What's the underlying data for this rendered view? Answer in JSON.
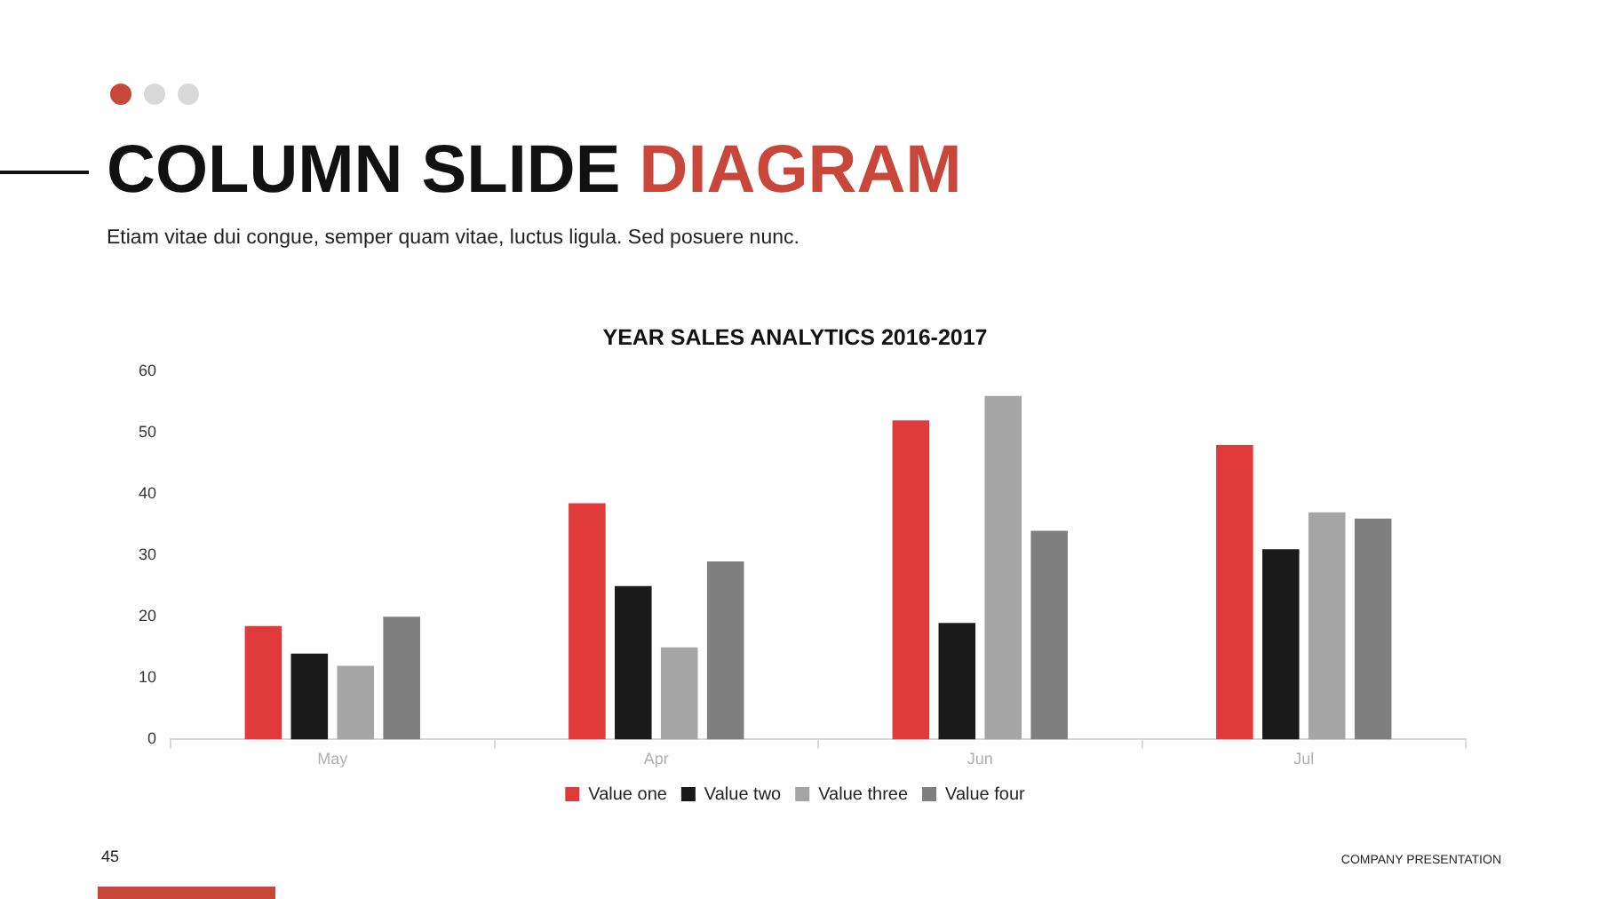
{
  "chart_data": {
    "type": "bar",
    "title": "COLUMN SLIDE DIAGRAM",
    "subtitle": "Etiam vitae dui congue, semper quam vitae, luctus ligula. Sed posuere nunc.",
    "annotations": [
      "YEAR SALES ANALYTICS 2016-2017",
      "45",
      "COMPANY PRESENTATION"
    ],
    "categories": [
      "May",
      "Apr",
      "Jun",
      "Jul"
    ],
    "series": [
      {
        "name": "Value one",
        "color": "#e03a3a",
        "values": [
          18.5,
          38.5,
          52,
          48
        ]
      },
      {
        "name": "Value two",
        "color": "#1b1a1b",
        "values": [
          14,
          25,
          19,
          31
        ]
      },
      {
        "name": "Value three",
        "color": "#a5a5a5",
        "values": [
          12,
          15,
          56,
          37
        ]
      },
      {
        "name": "Value four",
        "color": "#7f7f7f",
        "values": [
          20,
          29,
          34,
          36
        ]
      }
    ],
    "ylim": [
      0,
      60
    ],
    "yticks": [
      0,
      10,
      20,
      30,
      40,
      50,
      60
    ],
    "legend": "bottom"
  }
}
